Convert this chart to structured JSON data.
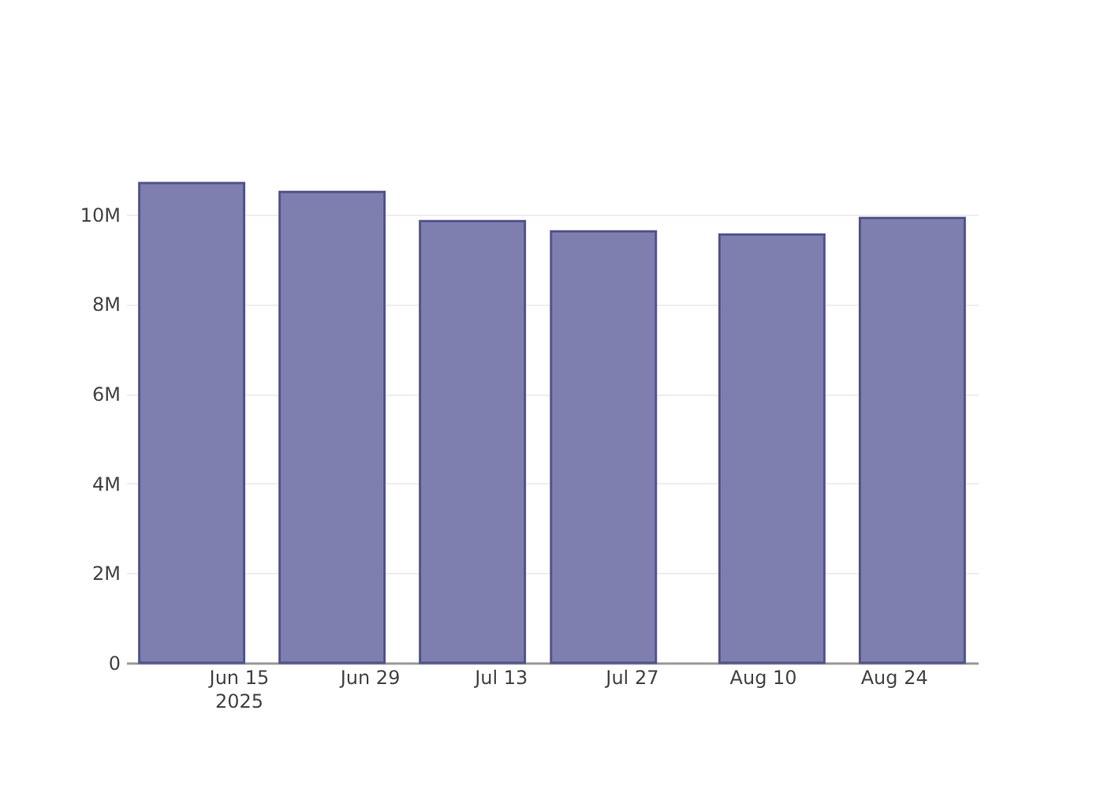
{
  "chart_data": {
    "type": "bar",
    "x": [
      "2025-06-10",
      "2025-06-25",
      "2025-07-10",
      "2025-07-24",
      "2025-08-11",
      "2025-08-26"
    ],
    "values": [
      10700000,
      10500000,
      9850000,
      9620000,
      9550000,
      9920000
    ],
    "color": "#7f7faf",
    "xlim": [
      "2025-06-03",
      "2025-09-02"
    ],
    "xticks": [
      {
        "value": "2025-06-15",
        "label": "Jun 15\n2025"
      },
      {
        "value": "2025-06-29",
        "label": "Jun 29"
      },
      {
        "value": "2025-07-13",
        "label": "Jul 13"
      },
      {
        "value": "2025-07-27",
        "label": "Jul 27"
      },
      {
        "value": "2025-08-10",
        "label": "Aug 10"
      },
      {
        "value": "2025-08-24",
        "label": "Aug 24"
      }
    ],
    "ylim": [
      0,
      10700000
    ],
    "yticks": [
      0,
      {
        "value": 2000000,
        "label": "2M"
      },
      {
        "value": 4000000,
        "label": "4M"
      },
      {
        "value": 6000000,
        "label": "6M"
      },
      {
        "value": 8000000,
        "label": "8M"
      },
      {
        "value": 10000000,
        "label": "10M"
      }
    ],
    "grid": "y"
  }
}
